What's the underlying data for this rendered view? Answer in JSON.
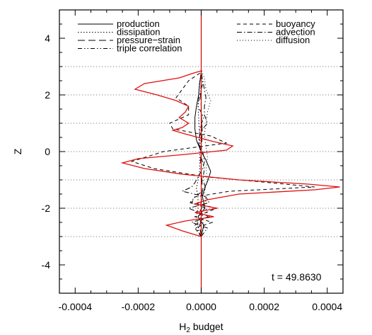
{
  "chart_data": {
    "type": "line",
    "xlabel": "H",
    "xlabel_sub": "2",
    "xlabel_rest": " budget",
    "ylabel": "Z",
    "xlim": [
      -0.00045,
      0.00045
    ],
    "ylim": [
      -5,
      5
    ],
    "xticks": [
      {
        "value": -0.0004,
        "label": "-0.0004"
      },
      {
        "value": -0.0002,
        "label": "-0.0002"
      },
      {
        "value": 0.0,
        "label": "0.0000"
      },
      {
        "value": 0.0002,
        "label": "0.0002"
      },
      {
        "value": 0.0004,
        "label": "0.0004"
      }
    ],
    "yticks": [
      {
        "value": -4,
        "label": "-4"
      },
      {
        "value": -2,
        "label": "-2"
      },
      {
        "value": 0,
        "label": "0"
      },
      {
        "value": 2,
        "label": "2"
      },
      {
        "value": 4,
        "label": "4"
      }
    ],
    "reference_lines_z": [
      -3,
      -2,
      -1,
      0,
      1,
      2,
      3
    ],
    "annotation": "t = 49.8630",
    "legend_placement": "top",
    "zero_line_color": "#cc0000",
    "total_color": "#e01010",
    "series": [
      {
        "name": "production",
        "style": "solid",
        "z": [
          -3.0,
          -2.6,
          -2.3,
          -2.0,
          -1.6,
          -1.3,
          -1.0,
          -0.7,
          -0.3,
          0.0,
          0.4,
          0.8,
          1.2,
          1.6,
          2.0,
          2.4,
          2.8
        ],
        "x": [
          0.0,
          8e-06,
          -1e-05,
          1.2e-05,
          4e-06,
          1e-05,
          2.2e-05,
          3e-05,
          1.5e-05,
          0.0,
          -1.5e-05,
          -2e-05,
          -2e-05,
          -1.5e-05,
          -8e-06,
          -5e-06,
          0.0
        ]
      },
      {
        "name": "dissipation",
        "style": "dotted",
        "z": [
          -3.0,
          -2.6,
          -2.3,
          -2.0,
          -1.6,
          -1.3,
          -1.0,
          -0.7,
          -0.3,
          0.0,
          0.4,
          0.8,
          1.2,
          1.6,
          2.0,
          2.4,
          2.8
        ],
        "x": [
          -5e-06,
          -1e-05,
          -1.5e-05,
          -1e-05,
          -1e-05,
          -1.5e-05,
          -1e-05,
          -5e-06,
          -5e-06,
          -4e-06,
          -4e-06,
          -6e-06,
          -8e-06,
          -1e-05,
          -8e-06,
          -6e-06,
          0.0
        ]
      },
      {
        "name": "pressure−strain",
        "style": "dashed-long",
        "z": [
          -3.0,
          -2.6,
          -2.3,
          -2.0,
          -1.6,
          -1.3,
          -1.0,
          -0.7,
          -0.3,
          0.0,
          0.4,
          0.8,
          1.2,
          1.6,
          2.0,
          2.4,
          2.8
        ],
        "x": [
          0.0,
          -5e-06,
          5e-06,
          -3e-06,
          2e-06,
          4e-06,
          2e-06,
          0.0,
          -2e-06,
          0.0,
          2e-06,
          3e-06,
          1e-06,
          0.0,
          -2e-06,
          0.0,
          0.0
        ]
      },
      {
        "name": "triple correlation",
        "style": "dash-dot-dot",
        "z": [
          -3.0,
          -2.6,
          -2.3,
          -2.0,
          -1.8,
          -1.6,
          -1.3,
          -1.0,
          -0.6,
          -0.2,
          0.3,
          0.8,
          1.2,
          1.6,
          2.0,
          2.4,
          2.8
        ],
        "x": [
          0.0,
          -2e-05,
          2e-05,
          1.5e-05,
          -3.5e-05,
          -2e-05,
          1.5e-05,
          5e-06,
          1e-05,
          0.0,
          -5e-06,
          -5e-06,
          8e-06,
          -1e-05,
          -5e-06,
          5e-06,
          0.0
        ]
      },
      {
        "name": "buoyancy",
        "style": "dashed",
        "z": [
          -3.0,
          -2.7,
          -2.5,
          -2.3,
          -2.0,
          -1.8,
          -1.6,
          -1.4,
          -1.25,
          -1.1,
          -0.9,
          -0.6,
          -0.35,
          0.0,
          0.3,
          0.55,
          0.8,
          1.0,
          1.3,
          1.6,
          1.9,
          2.2,
          2.5,
          2.8
        ],
        "x": [
          0.0,
          -2e-05,
          3.5e-05,
          -2e-05,
          5e-05,
          -3e-05,
          -2e-05,
          9e-05,
          0.00036,
          0.00022,
          2e-05,
          -0.00015,
          -0.00022,
          -0.00012,
          8e-05,
          3e-05,
          -9e-05,
          -0.0001,
          -4e-05,
          -4e-05,
          -8e-05,
          -6e-05,
          -4e-05,
          0.0
        ]
      },
      {
        "name": "advection",
        "style": "dash-dot",
        "z": [
          -3.0,
          -2.7,
          -2.5,
          -2.3,
          -2.0,
          -1.8,
          -1.6,
          -1.4,
          -1.25,
          -1.1,
          -0.9,
          -0.6,
          -0.35,
          0.0,
          0.3,
          0.55,
          0.8,
          1.0,
          1.3,
          1.6,
          1.9,
          2.2,
          2.5,
          2.8
        ],
        "x": [
          0.0,
          2e-05,
          -3e-05,
          2.5e-05,
          -4e-05,
          2.5e-05,
          1.5e-05,
          -6e-05,
          -3e-05,
          -2e-05,
          -1e-05,
          5e-06,
          1e-05,
          5e-06,
          -1e-05,
          -5e-06,
          5e-06,
          2e-05,
          1e-05,
          1e-05,
          1.5e-05,
          1e-05,
          5e-06,
          0.0
        ]
      },
      {
        "name": "diffusion",
        "style": "dotted-fine",
        "z": [
          -3.0,
          -2.6,
          -2.2,
          -1.8,
          -1.4,
          -1.0,
          -0.6,
          -0.2,
          0.2,
          0.6,
          1.0,
          1.4,
          1.8,
          2.2,
          2.6,
          2.9
        ],
        "x": [
          0.0,
          1e-05,
          -1e-05,
          1.5e-05,
          1e-05,
          2e-05,
          1.5e-05,
          2e-05,
          1.5e-05,
          1e-05,
          1.5e-05,
          2e-05,
          3e-05,
          1.5e-05,
          1e-05,
          0.0
        ]
      }
    ],
    "total": {
      "z": [
        -3.0,
        -2.8,
        -2.6,
        -2.45,
        -2.3,
        -2.15,
        -2.0,
        -1.85,
        -1.7,
        -1.5,
        -1.35,
        -1.25,
        -1.15,
        -1.0,
        -0.8,
        -0.6,
        -0.4,
        -0.25,
        -0.1,
        0.05,
        0.2,
        0.35,
        0.5,
        0.65,
        0.75,
        0.85,
        1.0,
        1.2,
        1.4,
        1.6,
        1.8,
        2.0,
        2.2,
        2.4,
        2.6,
        2.75,
        2.85
      ],
      "x": [
        0.0,
        -6e-05,
        -0.00011,
        -5e-05,
        4e-05,
        -2e-05,
        5e-05,
        -2e-05,
        2e-05,
        0.00012,
        0.00036,
        0.00044,
        0.00034,
        0.00012,
        -6e-05,
        -0.00018,
        -0.00025,
        -0.0002,
        -5e-05,
        8e-05,
        0.0001,
        4e-05,
        -1e-05,
        -6e-05,
        -9e-05,
        -6e-05,
        -4e-05,
        -7e-05,
        -5e-05,
        -4e-05,
        -8e-05,
        -0.00014,
        -0.00021,
        -0.00018,
        -7e-05,
        -3e-05,
        0.0
      ]
    }
  }
}
